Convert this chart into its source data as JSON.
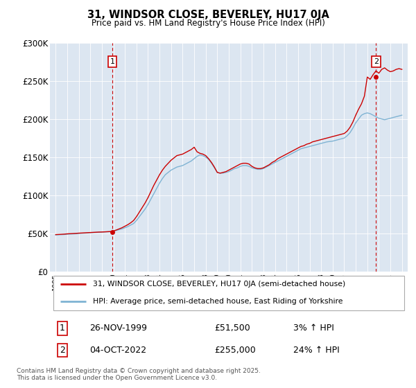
{
  "title": "31, WINDSOR CLOSE, BEVERLEY, HU17 0JA",
  "subtitle": "Price paid vs. HM Land Registry's House Price Index (HPI)",
  "legend_line1": "31, WINDSOR CLOSE, BEVERLEY, HU17 0JA (semi-detached house)",
  "legend_line2": "HPI: Average price, semi-detached house, East Riding of Yorkshire",
  "footer": "Contains HM Land Registry data © Crown copyright and database right 2025.\nThis data is licensed under the Open Government Licence v3.0.",
  "transaction1_date": "26-NOV-1999",
  "transaction1_price": "£51,500",
  "transaction1_hpi": "3% ↑ HPI",
  "transaction2_date": "04-OCT-2022",
  "transaction2_price": "£255,000",
  "transaction2_hpi": "24% ↑ HPI",
  "ylim": [
    0,
    300000
  ],
  "yticks": [
    0,
    50000,
    100000,
    150000,
    200000,
    250000,
    300000
  ],
  "ytick_labels": [
    "£0",
    "£50K",
    "£100K",
    "£150K",
    "£200K",
    "£250K",
    "£300K"
  ],
  "bg_color": "#dce6f1",
  "line_color_red": "#cc0000",
  "line_color_blue": "#7fb3d3",
  "marker_color": "#cc0000",
  "vline_color": "#cc0000",
  "transaction1_year": 1999.9,
  "transaction2_year": 2022.75,
  "transaction1_price_val": 51500,
  "transaction2_price_val": 255000,
  "years_hpi": [
    1995.0,
    1995.25,
    1995.5,
    1995.75,
    1996.0,
    1996.25,
    1996.5,
    1996.75,
    1997.0,
    1997.25,
    1997.5,
    1997.75,
    1998.0,
    1998.25,
    1998.5,
    1998.75,
    1999.0,
    1999.25,
    1999.5,
    1999.75,
    2000.0,
    2000.25,
    2000.5,
    2000.75,
    2001.0,
    2001.25,
    2001.5,
    2001.75,
    2002.0,
    2002.25,
    2002.5,
    2002.75,
    2003.0,
    2003.25,
    2003.5,
    2003.75,
    2004.0,
    2004.25,
    2004.5,
    2004.75,
    2005.0,
    2005.25,
    2005.5,
    2005.75,
    2006.0,
    2006.25,
    2006.5,
    2006.75,
    2007.0,
    2007.25,
    2007.5,
    2007.75,
    2008.0,
    2008.25,
    2008.5,
    2008.75,
    2009.0,
    2009.25,
    2009.5,
    2009.75,
    2010.0,
    2010.25,
    2010.5,
    2010.75,
    2011.0,
    2011.25,
    2011.5,
    2011.75,
    2012.0,
    2012.25,
    2012.5,
    2012.75,
    2013.0,
    2013.25,
    2013.5,
    2013.75,
    2014.0,
    2014.25,
    2014.5,
    2014.75,
    2015.0,
    2015.25,
    2015.5,
    2015.75,
    2016.0,
    2016.25,
    2016.5,
    2016.75,
    2017.0,
    2017.25,
    2017.5,
    2017.75,
    2018.0,
    2018.25,
    2018.5,
    2018.75,
    2019.0,
    2019.25,
    2019.5,
    2019.75,
    2020.0,
    2020.25,
    2020.5,
    2020.75,
    2021.0,
    2021.25,
    2021.5,
    2021.75,
    2022.0,
    2022.25,
    2022.5,
    2022.75,
    2023.0,
    2023.25,
    2023.5,
    2023.75,
    2024.0,
    2024.25,
    2024.5,
    2024.75,
    2025.0
  ],
  "hpi_vals": [
    48000,
    48200,
    48400,
    48600,
    49000,
    49200,
    49400,
    49600,
    50000,
    50200,
    50400,
    50600,
    51000,
    51200,
    51400,
    51600,
    51800,
    52000,
    52200,
    52400,
    53000,
    54000,
    55000,
    56000,
    57500,
    59000,
    61000,
    63000,
    67000,
    72000,
    77000,
    82000,
    88000,
    95000,
    102000,
    109000,
    116000,
    122000,
    127000,
    130000,
    133000,
    135000,
    137000,
    138000,
    139000,
    141000,
    143000,
    145000,
    148000,
    151000,
    153000,
    152000,
    150000,
    147000,
    142000,
    136000,
    130000,
    129000,
    129000,
    130000,
    131000,
    133000,
    135000,
    136000,
    138000,
    139000,
    139000,
    138000,
    136000,
    135000,
    134000,
    134000,
    135000,
    137000,
    139000,
    141000,
    143000,
    145000,
    147000,
    149000,
    151000,
    153000,
    155000,
    157000,
    159000,
    161000,
    162000,
    163000,
    164000,
    165000,
    166000,
    167000,
    168000,
    169000,
    170000,
    170500,
    171000,
    172000,
    173000,
    174000,
    175000,
    178000,
    182000,
    188000,
    195000,
    200000,
    205000,
    207000,
    208000,
    207000,
    205000,
    203000,
    201000,
    200000,
    199000,
    200000,
    201000,
    202000,
    203000,
    204000,
    205000
  ],
  "red_vals": [
    48500,
    48700,
    48900,
    49100,
    49500,
    49700,
    49900,
    50100,
    50400,
    50600,
    50800,
    51000,
    51200,
    51400,
    51600,
    51800,
    51900,
    52100,
    52300,
    52500,
    53200,
    54500,
    56000,
    57500,
    59500,
    61500,
    64000,
    67000,
    72000,
    78000,
    84000,
    90000,
    97000,
    105000,
    113000,
    120000,
    127000,
    133000,
    138000,
    142000,
    146000,
    149000,
    152000,
    153000,
    154000,
    156000,
    158000,
    160000,
    163000,
    157000,
    155000,
    154000,
    152000,
    148000,
    143000,
    137000,
    130000,
    129000,
    130000,
    131000,
    133000,
    135000,
    137000,
    139000,
    141000,
    142000,
    142000,
    141000,
    138000,
    136000,
    135000,
    135000,
    136000,
    138000,
    140000,
    143000,
    145000,
    148000,
    150000,
    152000,
    154000,
    156000,
    158000,
    160000,
    162000,
    164000,
    165000,
    167000,
    168000,
    170000,
    171000,
    172000,
    173000,
    174000,
    175000,
    176000,
    177000,
    178000,
    179000,
    180000,
    181000,
    184000,
    189000,
    196000,
    205000,
    213000,
    220000,
    230000,
    255000,
    252000,
    258000,
    263000,
    260000,
    265000,
    267000,
    264000,
    262000,
    263000,
    265000,
    266000,
    265000
  ]
}
